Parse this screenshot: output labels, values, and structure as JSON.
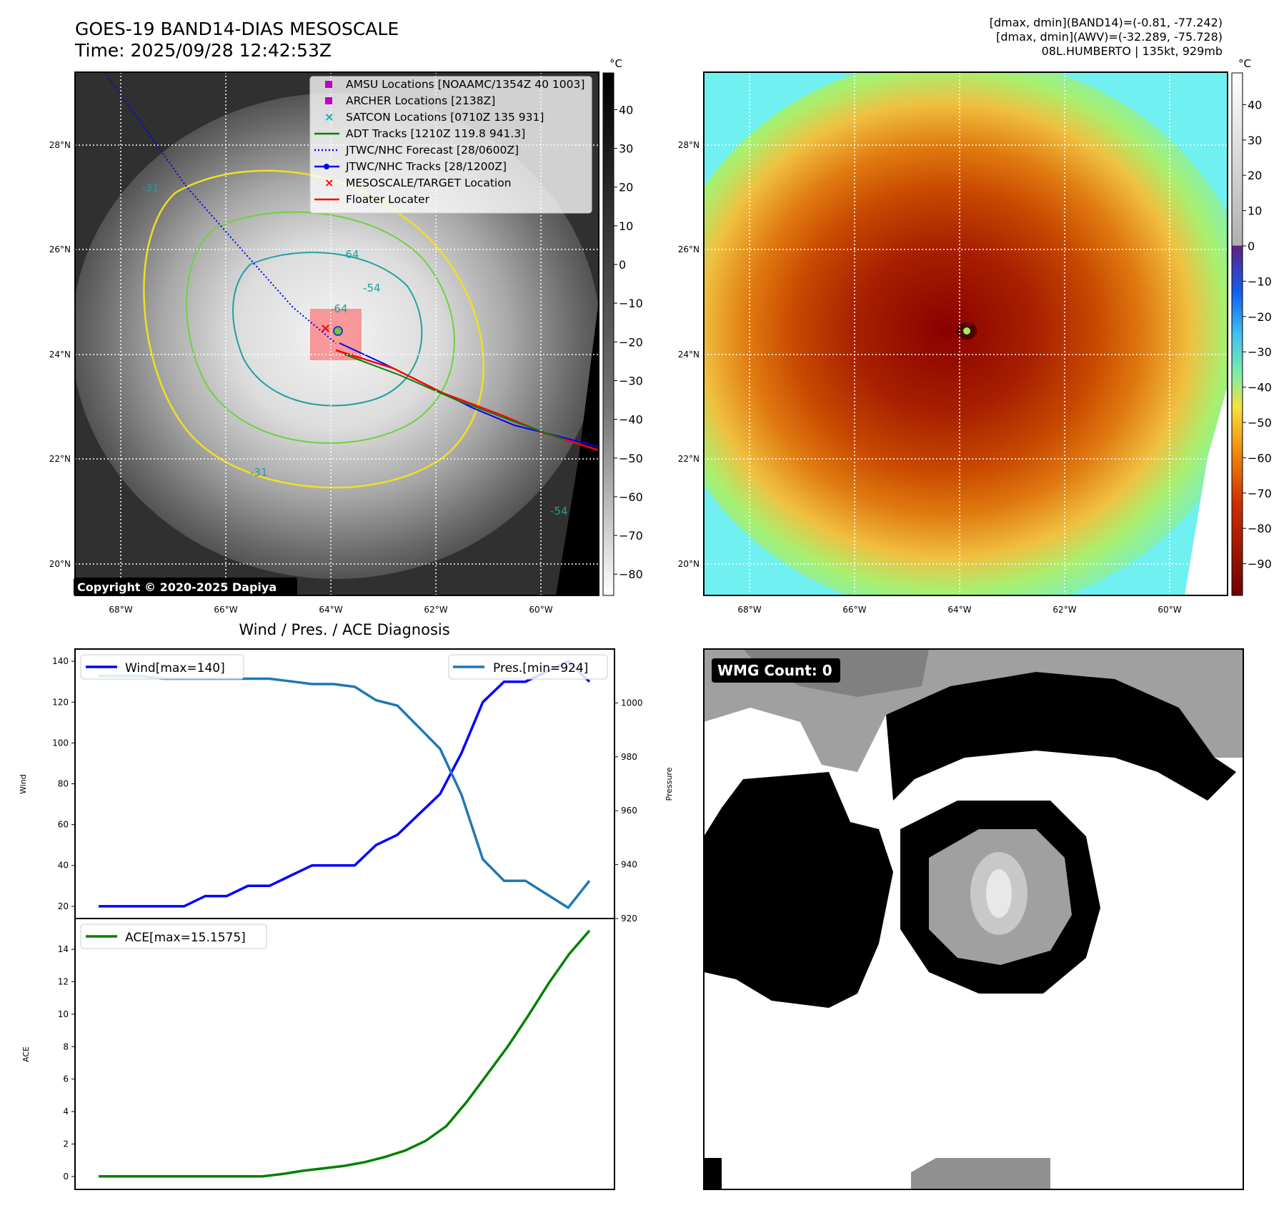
{
  "header": {
    "title_line1": "GOES-19 BAND14-DIAS MESOSCALE",
    "title_line2": "Time: 2025/09/28 12:42:53Z",
    "info_line1": "[dmax, dmin](BAND14)=(-0.81, -77.242)",
    "info_line2": "[dmax, dmin](AWV)=(-32.289, -75.728)",
    "info_line3": "08L.HUMBERTO | 135kt, 929mb"
  },
  "ir_map": {
    "lat_labels": [
      "28°N",
      "26°N",
      "24°N",
      "22°N",
      "20°N"
    ],
    "lon_labels": [
      "68°W",
      "66°W",
      "64°W",
      "62°W",
      "60°W"
    ],
    "copyright": "Copyright © 2020-2025 Dapiya",
    "colorbar_unit": "°C",
    "colorbar_ticks": [
      "40",
      "30",
      "20",
      "10",
      "0",
      "−10",
      "−20",
      "−30",
      "−40",
      "−50",
      "−60",
      "−70",
      "−80"
    ],
    "contour_labels": [
      "-64",
      "-54",
      "-64",
      "-31",
      "-31",
      "-54"
    ],
    "legend": [
      {
        "label": "AMSU Locations [NOAAMC/1354Z 40 1003]",
        "color": "#c000c0",
        "marker": "square"
      },
      {
        "label": "ARCHER Locations [2138Z]",
        "color": "#c000c0",
        "marker": "square"
      },
      {
        "label": "SATCON Locations [0710Z 135 931]",
        "color": "#00b0b0",
        "marker": "x"
      },
      {
        "label": "ADT Tracks [1210Z 119.8 941.3]",
        "color": "#008000",
        "marker": "line"
      },
      {
        "label": "JTWC/NHC Forecast [28/0600Z]",
        "color": "#0000ff",
        "marker": "dotted"
      },
      {
        "label": "JTWC/NHC Tracks [28/1200Z]",
        "color": "#0000ff",
        "marker": "line-dot"
      },
      {
        "label": "MESOSCALE/TARGET Location",
        "color": "#ff0000",
        "marker": "x"
      },
      {
        "label": "Floater Locater",
        "color": "#ff0000",
        "marker": "line"
      }
    ]
  },
  "awv_map": {
    "lat_labels": [
      "28°N",
      "26°N",
      "24°N",
      "22°N",
      "20°N"
    ],
    "lon_labels": [
      "68°W",
      "66°W",
      "64°W",
      "62°W",
      "60°W"
    ],
    "colorbar_unit": "°C",
    "colorbar_ticks": [
      "40",
      "30",
      "20",
      "10",
      "0",
      "−10",
      "−20",
      "−30",
      "−40",
      "−50",
      "−60",
      "−70",
      "−80",
      "−90"
    ]
  },
  "wmg": {
    "badge": "WMG Count: 0"
  },
  "colors": {
    "wind": "#0000ff",
    "pressure": "#1f77b4",
    "ace": "#008000",
    "floater": "#ff0000",
    "contour_yellow": "#f0e020",
    "contour_green": "#70d040",
    "contour_teal": "#20a0a0"
  },
  "chart_data": [
    {
      "type": "line",
      "title": "Wind / Pres. / ACE Diagnosis",
      "xlabel": "",
      "ylabel": "Wind",
      "ylim": [
        14,
        146
      ],
      "yticks": [
        20,
        40,
        60,
        80,
        100,
        120,
        140
      ],
      "series": [
        {
          "name": "Wind[max=140]",
          "values": [
            20,
            20,
            20,
            20,
            20,
            25,
            25,
            30,
            30,
            35,
            40,
            40,
            40,
            50,
            55,
            65,
            75,
            95,
            120,
            130,
            130,
            135,
            140,
            130
          ]
        }
      ]
    },
    {
      "type": "line",
      "xlabel": "",
      "ylabel": "Pressure",
      "ylim": [
        920,
        1020
      ],
      "yticks": [
        920,
        940,
        960,
        980,
        1000
      ],
      "series": [
        {
          "name": "Pres.[min=924]",
          "values": [
            1010,
            1010,
            1010,
            1009,
            1009,
            1009,
            1009,
            1009,
            1009,
            1008,
            1007,
            1007,
            1006,
            1001,
            999,
            991,
            983,
            966,
            942,
            934,
            934,
            929,
            924,
            934
          ]
        }
      ]
    },
    {
      "type": "line",
      "xlabel": "",
      "ylabel": "ACE",
      "ylim": [
        -0.8,
        15.9
      ],
      "yticks": [
        0,
        2,
        4,
        6,
        8,
        10,
        12,
        14
      ],
      "series": [
        {
          "name": "ACE[max=15.1575]",
          "values": [
            0,
            0,
            0,
            0,
            0,
            0,
            0,
            0,
            0,
            0.15,
            0.35,
            0.5,
            0.65,
            0.88,
            1.2,
            1.6,
            2.2,
            3.1,
            4.6,
            6.3,
            8.0,
            9.9,
            11.9,
            13.7,
            15.1575
          ]
        }
      ]
    }
  ]
}
